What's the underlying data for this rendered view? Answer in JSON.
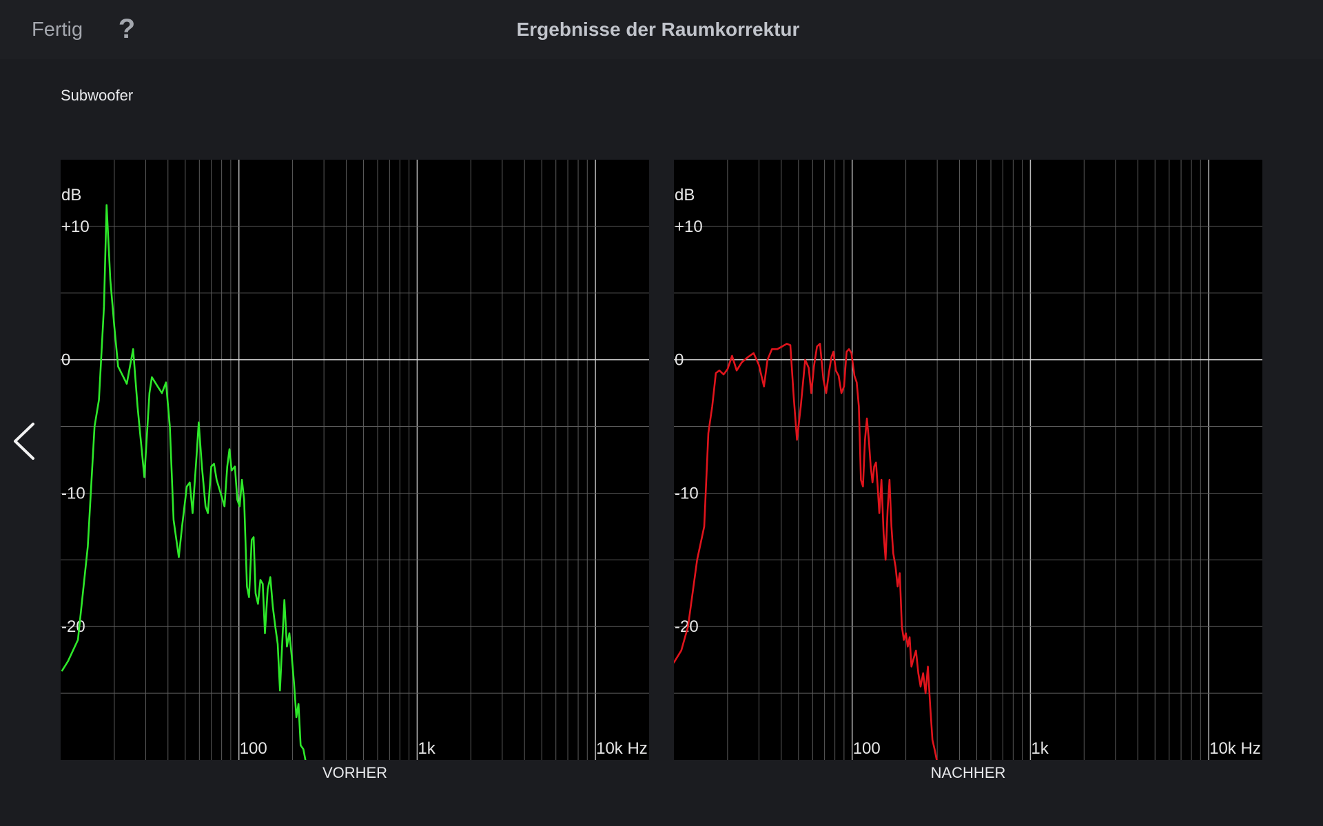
{
  "topbar": {
    "done_label": "Fertig",
    "help_label": "?",
    "title": "Ergebnisse der Raumkorrektur"
  },
  "section": {
    "title": "Subwoofer"
  },
  "nav": {
    "back_icon": "chevron-left-icon"
  },
  "colors": {
    "before": "#2ee82a",
    "after": "#e0141c",
    "background": "#1b1c20"
  },
  "chart_data": [
    {
      "type": "line",
      "title": "",
      "caption": "VORHER",
      "ylabel": "dB",
      "x_scale": "log",
      "xlim": [
        10,
        20000
      ],
      "ylim": [
        -30,
        15
      ],
      "y_ticks": [
        10,
        0,
        -10,
        -20
      ],
      "y_tick_labels": [
        "+10",
        "0",
        "-10",
        "-20"
      ],
      "x_ticks": [
        100,
        1000,
        10000
      ],
      "x_tick_labels": [
        "100",
        "1k",
        "10k Hz"
      ],
      "grid": true,
      "series": [
        {
          "color": "#2ee82a",
          "points": [
            [
              10.2,
              -23.3
            ],
            [
              11,
              -22.6
            ],
            [
              12.5,
              -21
            ],
            [
              14.2,
              -14
            ],
            [
              15.5,
              -5
            ],
            [
              16.4,
              -3
            ],
            [
              17.5,
              4
            ],
            [
              18.1,
              11.6
            ],
            [
              19,
              6
            ],
            [
              20,
              2.5
            ],
            [
              21,
              -0.5
            ],
            [
              23.5,
              -1.8
            ],
            [
              25.5,
              0.8
            ],
            [
              27,
              -3.5
            ],
            [
              29.5,
              -8.8
            ],
            [
              31.5,
              -2.5
            ],
            [
              32.5,
              -1.3
            ],
            [
              35,
              -2
            ],
            [
              37,
              -2.5
            ],
            [
              39,
              -1.7
            ],
            [
              41,
              -5
            ],
            [
              43,
              -12
            ],
            [
              46,
              -14.8
            ],
            [
              48,
              -12.5
            ],
            [
              51,
              -9.5
            ],
            [
              53,
              -9.2
            ],
            [
              55,
              -11.5
            ],
            [
              58,
              -7
            ],
            [
              59.5,
              -4.7
            ],
            [
              62,
              -8
            ],
            [
              65,
              -11
            ],
            [
              67,
              -11.5
            ],
            [
              70,
              -8
            ],
            [
              72.5,
              -7.8
            ],
            [
              75,
              -9
            ],
            [
              79,
              -10
            ],
            [
              83,
              -11
            ],
            [
              86,
              -8
            ],
            [
              88.5,
              -6.7
            ],
            [
              91,
              -8.3
            ],
            [
              95,
              -8
            ],
            [
              98,
              -10.5
            ],
            [
              101,
              -11
            ],
            [
              104,
              -9
            ],
            [
              107,
              -10.5
            ],
            [
              111,
              -17
            ],
            [
              114,
              -17.8
            ],
            [
              118,
              -13.5
            ],
            [
              121,
              -13.3
            ],
            [
              124,
              -17.5
            ],
            [
              128,
              -18.3
            ],
            [
              132,
              -16.5
            ],
            [
              136,
              -16.8
            ],
            [
              140,
              -20.5
            ],
            [
              145,
              -17.2
            ],
            [
              150,
              -16.3
            ],
            [
              155,
              -18.5
            ],
            [
              160,
              -20
            ],
            [
              165,
              -21.3
            ],
            [
              170,
              -24.8
            ],
            [
              175,
              -21.2
            ],
            [
              180,
              -18
            ],
            [
              186,
              -21.5
            ],
            [
              192,
              -20.5
            ],
            [
              198,
              -22.3
            ],
            [
              204,
              -24.3
            ],
            [
              210,
              -26.8
            ],
            [
              216,
              -25.8
            ],
            [
              222,
              -28.9
            ],
            [
              230,
              -29.2
            ],
            [
              236,
              -30
            ]
          ]
        }
      ]
    },
    {
      "type": "line",
      "title": "",
      "caption": "NACHHER",
      "ylabel": "dB",
      "x_scale": "log",
      "xlim": [
        10,
        20000
      ],
      "ylim": [
        -30,
        15
      ],
      "y_ticks": [
        10,
        0,
        -10,
        -20
      ],
      "y_tick_labels": [
        "+10",
        "0",
        "-10",
        "-20"
      ],
      "x_ticks": [
        100,
        1000,
        10000
      ],
      "x_tick_labels": [
        "100",
        "1k",
        "10k Hz"
      ],
      "grid": true,
      "series": [
        {
          "color": "#e0141c",
          "points": [
            [
              10,
              -22.7
            ],
            [
              11,
              -21.8
            ],
            [
              12,
              -20
            ],
            [
              13.5,
              -15
            ],
            [
              14.8,
              -12.5
            ],
            [
              15.6,
              -5.5
            ],
            [
              16.4,
              -3.5
            ],
            [
              17.2,
              -1
            ],
            [
              18,
              -0.8
            ],
            [
              19,
              -1.1
            ],
            [
              20,
              -0.7
            ],
            [
              21.2,
              0.3
            ],
            [
              22.5,
              -0.8
            ],
            [
              24,
              -0.2
            ],
            [
              26,
              0.2
            ],
            [
              28,
              0.5
            ],
            [
              30,
              -0.4
            ],
            [
              32,
              -2
            ],
            [
              33.5,
              0
            ],
            [
              35.5,
              0.8
            ],
            [
              38,
              0.8
            ],
            [
              40.5,
              1
            ],
            [
              43,
              1.2
            ],
            [
              45,
              1.1
            ],
            [
              47,
              -2.8
            ],
            [
              49,
              -6
            ],
            [
              51.5,
              -3.5
            ],
            [
              54.5,
              0
            ],
            [
              57,
              -0.6
            ],
            [
              59,
              -2.5
            ],
            [
              61,
              -0.5
            ],
            [
              63.5,
              1
            ],
            [
              66,
              1.2
            ],
            [
              69,
              -1.5
            ],
            [
              71.5,
              -2.5
            ],
            [
              74,
              -1
            ],
            [
              76.5,
              0.2
            ],
            [
              78.5,
              0.6
            ],
            [
              81,
              -0.8
            ],
            [
              84,
              -1.2
            ],
            [
              87,
              -2.5
            ],
            [
              90,
              -2
            ],
            [
              93,
              0.6
            ],
            [
              96,
              0.8
            ],
            [
              99,
              0.5
            ],
            [
              103,
              -1.2
            ],
            [
              106,
              -1.7
            ],
            [
              109,
              -3.5
            ],
            [
              112,
              -9
            ],
            [
              115,
              -9.5
            ],
            [
              118,
              -6
            ],
            [
              121,
              -4.4
            ],
            [
              124,
              -6
            ],
            [
              127,
              -8
            ],
            [
              130,
              -9.2
            ],
            [
              133,
              -8
            ],
            [
              136,
              -7.7
            ],
            [
              139,
              -9.5
            ],
            [
              142,
              -11.5
            ],
            [
              146,
              -9
            ],
            [
              150,
              -13
            ],
            [
              154,
              -15
            ],
            [
              158,
              -11.3
            ],
            [
              162,
              -9
            ],
            [
              166,
              -12.5
            ],
            [
              170,
              -14.5
            ],
            [
              175,
              -15.5
            ],
            [
              180,
              -17
            ],
            [
              185,
              -16
            ],
            [
              190,
              -20
            ],
            [
              195,
              -21
            ],
            [
              200,
              -20.5
            ],
            [
              205,
              -21.5
            ],
            [
              210,
              -20.8
            ],
            [
              215,
              -23
            ],
            [
              220,
              -22.5
            ],
            [
              228,
              -21.8
            ],
            [
              235,
              -23.5
            ],
            [
              242,
              -24.5
            ],
            [
              250,
              -23.5
            ],
            [
              258,
              -25
            ],
            [
              266,
              -23
            ],
            [
              274,
              -26
            ],
            [
              282,
              -28.5
            ],
            [
              290,
              -29.2
            ],
            [
              298,
              -30
            ]
          ]
        }
      ]
    }
  ]
}
